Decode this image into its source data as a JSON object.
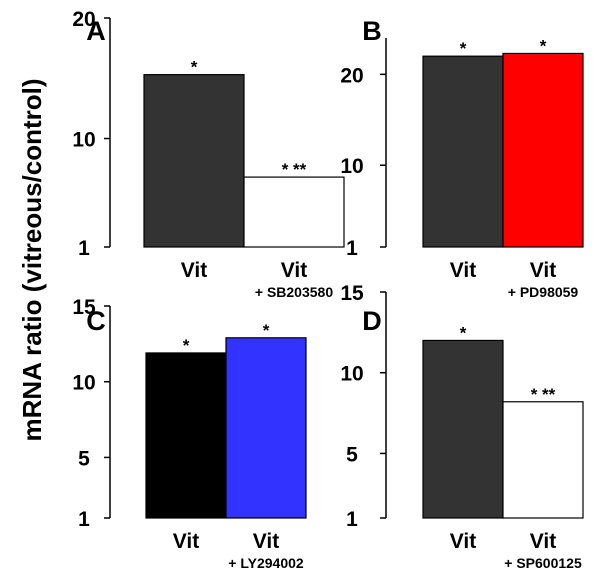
{
  "figure": {
    "ylabel": "mRNA ratio (vitreous/control)"
  },
  "chart_data": [
    {
      "type": "bar",
      "panel": "A",
      "categories": [
        "Vit",
        "Vit"
      ],
      "category_notes": [
        "",
        "+ SB203580"
      ],
      "values": [
        15.3,
        6.8
      ],
      "colors": [
        "#333333",
        "#ffffff"
      ],
      "bar_labels": [
        "*",
        "* **"
      ],
      "yticks": [
        1,
        10,
        20
      ],
      "ylim": [
        1,
        20
      ],
      "ylabel": "mRNA ratio (vitreous/control)"
    },
    {
      "type": "bar",
      "panel": "B",
      "categories": [
        "Vit",
        "Vit"
      ],
      "category_notes": [
        "",
        "+ PD98059"
      ],
      "values": [
        22,
        22.3
      ],
      "colors": [
        "#333333",
        "#ff0000"
      ],
      "bar_labels": [
        "*",
        "*"
      ],
      "yticks": [
        1,
        10,
        20
      ],
      "ylim": [
        1,
        24
      ],
      "ylabel": "mRNA ratio (vitreous/control)"
    },
    {
      "type": "bar",
      "panel": "C",
      "categories": [
        "Vit",
        "Vit"
      ],
      "category_notes": [
        "",
        "+ LY294002"
      ],
      "values": [
        11.9,
        12.9
      ],
      "colors": [
        "#000000",
        "#3333ff"
      ],
      "bar_labels": [
        "*",
        "*"
      ],
      "yticks": [
        1,
        5,
        10,
        15
      ],
      "ylim": [
        1,
        15
      ],
      "ylabel": "mRNA ratio (vitreous/control)"
    },
    {
      "type": "bar",
      "panel": "D",
      "categories": [
        "Vit",
        "Vit"
      ],
      "category_notes": [
        "",
        "+ SP600125"
      ],
      "values": [
        12.0,
        8.2
      ],
      "colors": [
        "#333333",
        "#ffffff"
      ],
      "bar_labels": [
        "*",
        "* **"
      ],
      "yticks": [
        1,
        5,
        10,
        15
      ],
      "ylim": [
        1,
        15
      ],
      "ylabel": "mRNA ratio (vitreous/control)"
    }
  ]
}
